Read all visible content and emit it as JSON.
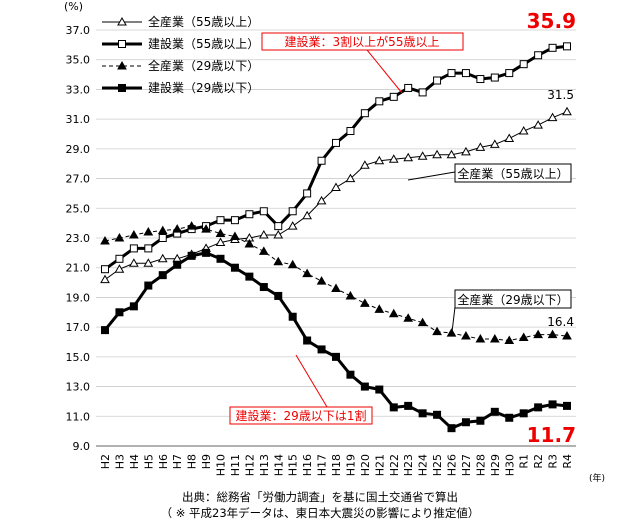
{
  "chart_data": {
    "type": "line",
    "y_unit": "(%)",
    "x_unit": "(年)",
    "ylim": [
      9.0,
      37.0
    ],
    "y_ticks": [
      "9.0",
      "11.0",
      "13.0",
      "15.0",
      "17.0",
      "19.0",
      "21.0",
      "23.0",
      "25.0",
      "27.0",
      "29.0",
      "31.0",
      "33.0",
      "35.0",
      "37.0"
    ],
    "categories": [
      "H2",
      "H3",
      "H4",
      "H5",
      "H6",
      "H7",
      "H8",
      "H9",
      "H10",
      "H11",
      "H12",
      "H13",
      "H14",
      "H15",
      "H16",
      "H17",
      "H18",
      "H19",
      "H20",
      "H21",
      "H22",
      "H23",
      "H24",
      "H25",
      "H26",
      "H27",
      "H28",
      "H29",
      "H30",
      "R1",
      "R2",
      "R3",
      "R4"
    ],
    "grid": true,
    "legend_position": "top-left",
    "series": [
      {
        "name": "全産業（55歳以上）",
        "style": "thin-triangle",
        "values": [
          20.2,
          20.9,
          21.3,
          21.3,
          21.6,
          21.6,
          21.9,
          22.3,
          22.7,
          22.9,
          23.0,
          23.2,
          23.2,
          23.8,
          24.5,
          25.5,
          26.4,
          27.0,
          27.9,
          28.2,
          28.3,
          28.4,
          28.5,
          28.6,
          28.6,
          28.8,
          29.1,
          29.3,
          29.7,
          30.2,
          30.6,
          31.1,
          31.5
        ]
      },
      {
        "name": "建設業（55歳以上）",
        "style": "thick-square",
        "values": [
          20.9,
          21.6,
          22.3,
          22.3,
          23.0,
          23.3,
          23.6,
          23.8,
          24.2,
          24.2,
          24.6,
          24.8,
          23.8,
          24.8,
          26.0,
          28.2,
          29.4,
          30.2,
          31.4,
          32.2,
          32.5,
          33.1,
          32.8,
          33.6,
          34.1,
          34.1,
          33.7,
          33.8,
          34.1,
          34.7,
          35.3,
          35.8,
          35.9
        ]
      },
      {
        "name": "全産業（29歳以下）",
        "style": "thin-triangle-dashed",
        "values": [
          22.8,
          23.0,
          23.2,
          23.4,
          23.5,
          23.6,
          23.8,
          23.6,
          23.3,
          23.1,
          22.6,
          22.1,
          21.4,
          21.2,
          20.6,
          20.1,
          19.6,
          19.1,
          18.6,
          18.2,
          17.9,
          17.6,
          17.3,
          16.7,
          16.6,
          16.4,
          16.2,
          16.2,
          16.1,
          16.3,
          16.5,
          16.5,
          16.4
        ]
      },
      {
        "name": "建設業（29歳以下）",
        "style": "thick-filled-square",
        "values": [
          16.8,
          18.0,
          18.4,
          19.8,
          20.5,
          21.2,
          21.8,
          22.0,
          21.6,
          21.0,
          20.4,
          19.7,
          19.1,
          17.7,
          16.1,
          15.5,
          15.0,
          13.8,
          13.0,
          12.8,
          11.6,
          11.7,
          11.2,
          11.1,
          10.2,
          10.6,
          10.7,
          11.3,
          10.9,
          11.2,
          11.6,
          11.8,
          11.7
        ]
      }
    ],
    "annotations": {
      "peak_label": "35.9",
      "low_label": "11.7",
      "all55_end_label": "31.5",
      "all29_end_label": "16.4",
      "callout_construction55": "建設業：3割以上が55歳以上",
      "callout_construction29": "建設業：29歳以下は1割",
      "callout_all55": "全産業（55歳以上）",
      "callout_all29": "全産業（29歳以下）"
    }
  },
  "source": {
    "line1": "出典：総務省「労働力調査」を基に国土交通省で算出",
    "line2": "（ ※ 平成23年データは、東日本大震災の影響により推定値）"
  }
}
